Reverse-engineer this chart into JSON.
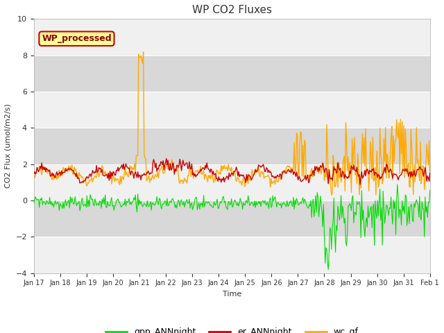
{
  "title": "WP CO2 Fluxes",
  "xlabel": "Time",
  "ylabel": "CO2 Flux (umol/m2/s)",
  "ylim": [
    -4,
    10
  ],
  "yticks": [
    -4,
    -2,
    0,
    2,
    4,
    6,
    8,
    10
  ],
  "fig_bg_color": "#ffffff",
  "plot_bg_color": "#d8d8d8",
  "stripe_color": "#f0f0f0",
  "series": [
    "gpp_ANNnight",
    "er_ANNnight",
    "wc_gf"
  ],
  "colors": [
    "#00dd00",
    "#cc0000",
    "#ffaa00"
  ],
  "linewidths": [
    0.8,
    1.0,
    1.0
  ],
  "watermark_text": "WP_processed",
  "watermark_bg": "#ffff99",
  "watermark_border": "#cc0000",
  "watermark_text_color": "#8b0000",
  "xtick_labels": [
    "Jan 17",
    "Jan 18",
    "Jan 19",
    "Jan 20",
    "Jan 21",
    "Jan 22",
    "Jan 23",
    "Jan 24",
    "Jan 25",
    "Jan 26",
    "Jan 27",
    "Jan 28",
    "Jan 29",
    "Jan 30",
    "Jan 31",
    "Feb 1"
  ],
  "n_points": 500,
  "end_day": 15.0
}
